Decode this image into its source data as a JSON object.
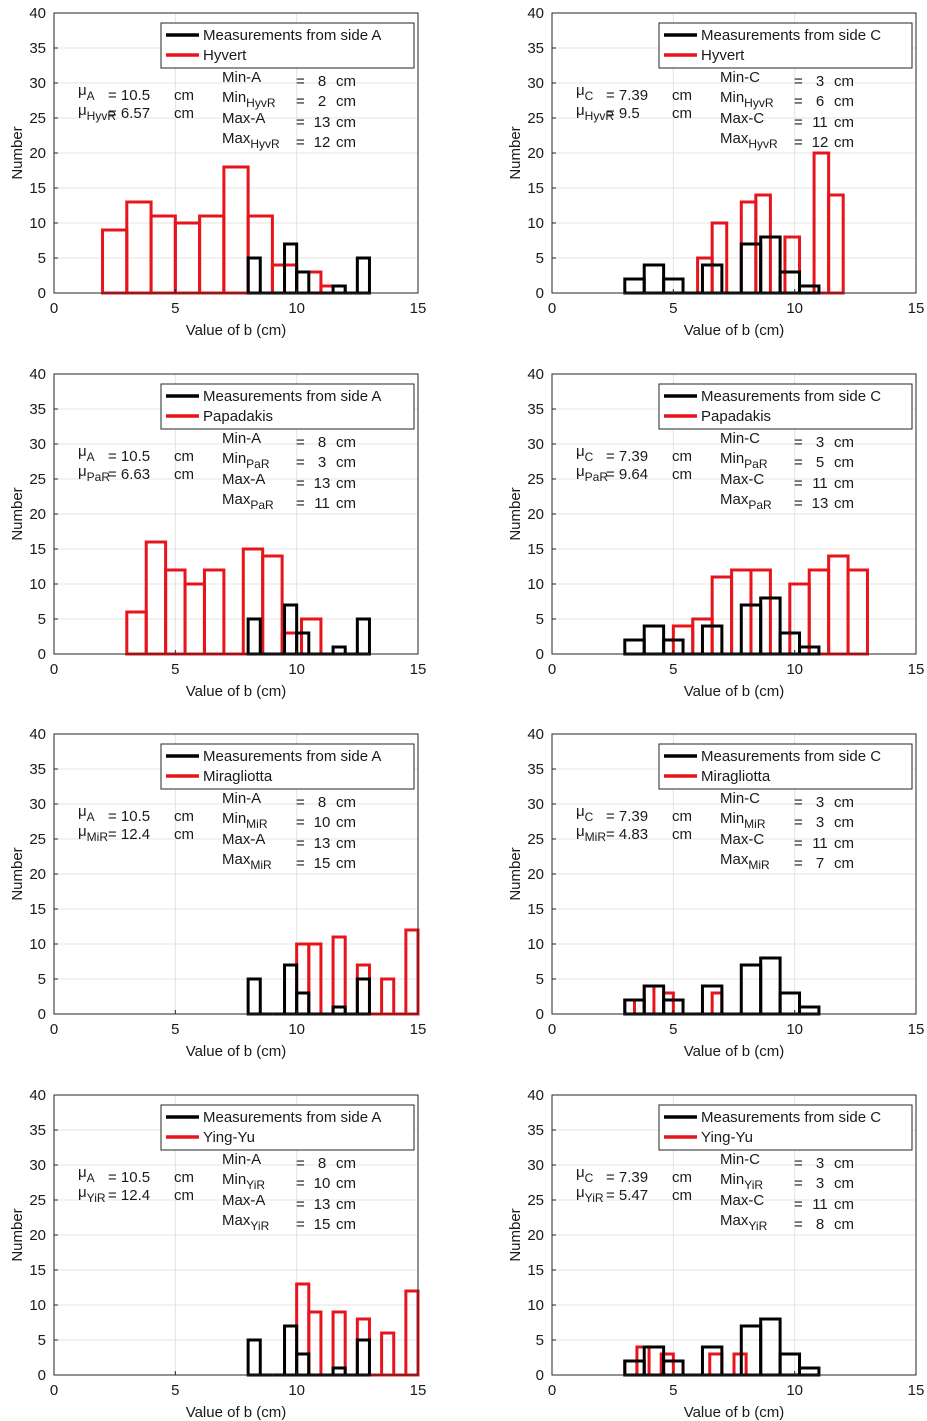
{
  "chart_data": [
    {
      "type": "bar",
      "xlabel": "Value of b (cm)",
      "ylabel": "Number",
      "xlim": [
        0,
        15
      ],
      "ylim": [
        0,
        40
      ],
      "xticks": [
        0,
        5,
        10,
        15
      ],
      "yticks": [
        0,
        5,
        10,
        15,
        20,
        25,
        30,
        35,
        40
      ],
      "grid": true,
      "legend_position": "top-right",
      "legend": [
        "Measurements from side A",
        "Hyvert"
      ],
      "colors": {
        "reference": "#000000",
        "method": "#e8141b"
      },
      "series": [
        {
          "name": "Measurements from side A",
          "bin_width": 0.5,
          "x": [
            8,
            8.5,
            9,
            9.5,
            10,
            10.5,
            11,
            11.5,
            12,
            12.5
          ],
          "values": [
            5,
            0,
            0,
            7,
            3,
            0,
            0,
            1,
            0,
            5
          ]
        },
        {
          "name": "Hyvert",
          "bin_width": 1,
          "x": [
            2,
            3,
            4,
            5,
            6,
            7,
            8,
            9,
            10,
            11
          ],
          "values": [
            9,
            13,
            11,
            10,
            11,
            18,
            11,
            4,
            3,
            1
          ]
        }
      ],
      "stats": {
        "mu_ref": {
          "symbol": "μ",
          "sub": "A",
          "value": "10.5",
          "unit": "cm"
        },
        "mu_method": {
          "symbol": "μ",
          "sub": "HyvR",
          "value": "6.57",
          "unit": "cm"
        },
        "min_ref": {
          "label": "Min-A",
          "sub": "",
          "value": "8",
          "unit": "cm"
        },
        "min_method": {
          "label": "Min",
          "sub": "HyvR",
          "value": "2",
          "unit": "cm"
        },
        "max_ref": {
          "label": "Max-A",
          "sub": "",
          "value": "13",
          "unit": "cm"
        },
        "max_method": {
          "label": "Max",
          "sub": "HyvR",
          "value": "12",
          "unit": "cm"
        }
      }
    },
    {
      "type": "bar",
      "xlabel": "Value of b (cm)",
      "ylabel": "Number",
      "xlim": [
        0,
        15
      ],
      "ylim": [
        0,
        40
      ],
      "xticks": [
        0,
        5,
        10,
        15
      ],
      "yticks": [
        0,
        5,
        10,
        15,
        20,
        25,
        30,
        35,
        40
      ],
      "grid": true,
      "legend_position": "top-right",
      "legend": [
        "Measurements from side C",
        "Hyvert"
      ],
      "colors": {
        "reference": "#000000",
        "method": "#e8141b"
      },
      "series": [
        {
          "name": "Measurements from side C",
          "bin_width": 0.8,
          "x": [
            3,
            3.8,
            4.6,
            5.4,
            6.2,
            7,
            7.8,
            8.6,
            9.4,
            10.2
          ],
          "values": [
            2,
            4,
            2,
            0,
            4,
            0,
            7,
            8,
            3,
            1
          ]
        },
        {
          "name": "Hyvert",
          "bin_width": 0.6,
          "x": [
            6,
            6.6,
            7.2,
            7.8,
            8.4,
            9,
            9.6,
            10.2,
            10.8,
            11.4
          ],
          "values": [
            5,
            10,
            0,
            13,
            14,
            0,
            8,
            0,
            20,
            14
          ]
        }
      ],
      "stats": {
        "mu_ref": {
          "symbol": "μ",
          "sub": "C",
          "value": "7.39",
          "unit": "cm"
        },
        "mu_method": {
          "symbol": "μ",
          "sub": "HyvR",
          "value": "9.5",
          "unit": "cm"
        },
        "min_ref": {
          "label": "Min-C",
          "sub": "",
          "value": "3",
          "unit": "cm"
        },
        "min_method": {
          "label": "Min",
          "sub": "HyvR",
          "value": "6",
          "unit": "cm"
        },
        "max_ref": {
          "label": "Max-C",
          "sub": "",
          "value": "11",
          "unit": "cm"
        },
        "max_method": {
          "label": "Max",
          "sub": "HyvR",
          "value": "12",
          "unit": "cm"
        }
      }
    },
    {
      "type": "bar",
      "xlabel": "Value of b (cm)",
      "ylabel": "Number",
      "xlim": [
        0,
        15
      ],
      "ylim": [
        0,
        40
      ],
      "xticks": [
        0,
        5,
        10,
        15
      ],
      "yticks": [
        0,
        5,
        10,
        15,
        20,
        25,
        30,
        35,
        40
      ],
      "grid": true,
      "legend_position": "top-right",
      "legend": [
        "Measurements from side A",
        "Papadakis"
      ],
      "colors": {
        "reference": "#000000",
        "method": "#e8141b"
      },
      "series": [
        {
          "name": "Measurements from side A",
          "bin_width": 0.5,
          "x": [
            8,
            8.5,
            9,
            9.5,
            10,
            10.5,
            11,
            11.5,
            12,
            12.5
          ],
          "values": [
            5,
            0,
            0,
            7,
            3,
            0,
            0,
            1,
            0,
            5
          ]
        },
        {
          "name": "Papadakis",
          "bin_width": 0.8,
          "x": [
            3,
            3.8,
            4.6,
            5.4,
            6.2,
            7,
            7.8,
            8.6,
            9.4,
            10.2
          ],
          "values": [
            6,
            16,
            12,
            10,
            12,
            0,
            15,
            14,
            3,
            5
          ]
        }
      ],
      "stats": {
        "mu_ref": {
          "symbol": "μ",
          "sub": "A",
          "value": "10.5",
          "unit": "cm"
        },
        "mu_method": {
          "symbol": "μ",
          "sub": "PaR",
          "value": "6.63",
          "unit": "cm"
        },
        "min_ref": {
          "label": "Min-A",
          "sub": "",
          "value": "8",
          "unit": "cm"
        },
        "min_method": {
          "label": "Min",
          "sub": "PaR",
          "value": "3",
          "unit": "cm"
        },
        "max_ref": {
          "label": "Max-A",
          "sub": "",
          "value": "13",
          "unit": "cm"
        },
        "max_method": {
          "label": "Max",
          "sub": "PaR",
          "value": "11",
          "unit": "cm"
        }
      }
    },
    {
      "type": "bar",
      "xlabel": "Value of b (cm)",
      "ylabel": "Number",
      "xlim": [
        0,
        15
      ],
      "ylim": [
        0,
        40
      ],
      "xticks": [
        0,
        5,
        10,
        15
      ],
      "yticks": [
        0,
        5,
        10,
        15,
        20,
        25,
        30,
        35,
        40
      ],
      "grid": true,
      "legend_position": "top-right",
      "legend": [
        "Measurements from side C",
        "Papadakis"
      ],
      "colors": {
        "reference": "#000000",
        "method": "#e8141b"
      },
      "series": [
        {
          "name": "Measurements from side C",
          "bin_width": 0.8,
          "x": [
            3,
            3.8,
            4.6,
            5.4,
            6.2,
            7,
            7.8,
            8.6,
            9.4,
            10.2
          ],
          "values": [
            2,
            4,
            2,
            0,
            4,
            0,
            7,
            8,
            3,
            1
          ]
        },
        {
          "name": "Papadakis",
          "bin_width": 0.8,
          "x": [
            5,
            5.8,
            6.6,
            7.4,
            8.2,
            9,
            9.8,
            10.6,
            11.4,
            12.2
          ],
          "values": [
            4,
            5,
            11,
            12,
            12,
            0,
            10,
            12,
            14,
            12
          ]
        }
      ],
      "stats": {
        "mu_ref": {
          "symbol": "μ",
          "sub": "C",
          "value": "7.39",
          "unit": "cm"
        },
        "mu_method": {
          "symbol": "μ",
          "sub": "PaR",
          "value": "9.64",
          "unit": "cm"
        },
        "min_ref": {
          "label": "Min-C",
          "sub": "",
          "value": "3",
          "unit": "cm"
        },
        "min_method": {
          "label": "Min",
          "sub": "PaR",
          "value": "5",
          "unit": "cm"
        },
        "max_ref": {
          "label": "Max-C",
          "sub": "",
          "value": "11",
          "unit": "cm"
        },
        "max_method": {
          "label": "Max",
          "sub": "PaR",
          "value": "13",
          "unit": "cm"
        }
      }
    },
    {
      "type": "bar",
      "xlabel": "Value of b (cm)",
      "ylabel": "Number",
      "xlim": [
        0,
        15
      ],
      "ylim": [
        0,
        40
      ],
      "xticks": [
        0,
        5,
        10,
        15
      ],
      "yticks": [
        0,
        5,
        10,
        15,
        20,
        25,
        30,
        35,
        40
      ],
      "grid": true,
      "legend_position": "top-right",
      "legend": [
        "Measurements from side A",
        "Miragliotta"
      ],
      "colors": {
        "reference": "#000000",
        "method": "#e8141b"
      },
      "series": [
        {
          "name": "Measurements from side A",
          "bin_width": 0.5,
          "x": [
            8,
            8.5,
            9,
            9.5,
            10,
            10.5,
            11,
            11.5,
            12,
            12.5
          ],
          "values": [
            5,
            0,
            0,
            7,
            3,
            0,
            0,
            1,
            0,
            5
          ]
        },
        {
          "name": "Miragliotta",
          "bin_width": 0.5,
          "x": [
            10,
            10.5,
            11,
            11.5,
            12,
            12.5,
            13,
            13.5,
            14,
            14.5
          ],
          "values": [
            10,
            10,
            0,
            11,
            0,
            7,
            0,
            5,
            0,
            12
          ]
        }
      ],
      "stats": {
        "mu_ref": {
          "symbol": "μ",
          "sub": "A",
          "value": "10.5",
          "unit": "cm"
        },
        "mu_method": {
          "symbol": "μ",
          "sub": "MiR",
          "value": "12.4",
          "unit": "cm"
        },
        "min_ref": {
          "label": "Min-A",
          "sub": "",
          "value": "8",
          "unit": "cm"
        },
        "min_method": {
          "label": "Min",
          "sub": "MiR",
          "value": "10",
          "unit": "cm"
        },
        "max_ref": {
          "label": "Max-A",
          "sub": "",
          "value": "13",
          "unit": "cm"
        },
        "max_method": {
          "label": "Max",
          "sub": "MiR",
          "value": "15",
          "unit": "cm"
        }
      }
    },
    {
      "type": "bar",
      "xlabel": "Value of b (cm)",
      "ylabel": "Number",
      "xlim": [
        0,
        15
      ],
      "ylim": [
        0,
        40
      ],
      "xticks": [
        0,
        5,
        10,
        15
      ],
      "yticks": [
        0,
        5,
        10,
        15,
        20,
        25,
        30,
        35,
        40
      ],
      "grid": true,
      "legend_position": "top-right",
      "legend": [
        "Measurements from side C",
        "Miragliotta"
      ],
      "colors": {
        "reference": "#000000",
        "method": "#e8141b"
      },
      "series": [
        {
          "name": "Measurements from side C",
          "bin_width": 0.8,
          "x": [
            3,
            3.8,
            4.6,
            5.4,
            6.2,
            7,
            7.8,
            8.6,
            9.4,
            10.2
          ],
          "values": [
            2,
            4,
            2,
            0,
            4,
            0,
            7,
            8,
            3,
            1
          ]
        },
        {
          "name": "Miragliotta",
          "bin_width": 0.4,
          "x": [
            3,
            3.4,
            3.8,
            4.2,
            4.6,
            5,
            5.4,
            5.8,
            6.2,
            6.6
          ],
          "values": [
            2,
            0,
            4,
            0,
            3,
            0,
            0,
            0,
            0,
            3
          ]
        }
      ],
      "stats": {
        "mu_ref": {
          "symbol": "μ",
          "sub": "C",
          "value": "7.39",
          "unit": "cm"
        },
        "mu_method": {
          "symbol": "μ",
          "sub": "MiR",
          "value": "4.83",
          "unit": "cm"
        },
        "min_ref": {
          "label": "Min-C",
          "sub": "",
          "value": "3",
          "unit": "cm"
        },
        "min_method": {
          "label": "Min",
          "sub": "MiR",
          "value": "3",
          "unit": "cm"
        },
        "max_ref": {
          "label": "Max-C",
          "sub": "",
          "value": "11",
          "unit": "cm"
        },
        "max_method": {
          "label": "Max",
          "sub": "MiR",
          "value": "7",
          "unit": "cm"
        }
      }
    },
    {
      "type": "bar",
      "xlabel": "Value of b (cm)",
      "ylabel": "Number",
      "xlim": [
        0,
        15
      ],
      "ylim": [
        0,
        40
      ],
      "xticks": [
        0,
        5,
        10,
        15
      ],
      "yticks": [
        0,
        5,
        10,
        15,
        20,
        25,
        30,
        35,
        40
      ],
      "grid": true,
      "legend_position": "top-right",
      "legend": [
        "Measurements from side A",
        "Ying-Yu"
      ],
      "colors": {
        "reference": "#000000",
        "method": "#e8141b"
      },
      "series": [
        {
          "name": "Measurements from side A",
          "bin_width": 0.5,
          "x": [
            8,
            8.5,
            9,
            9.5,
            10,
            10.5,
            11,
            11.5,
            12,
            12.5
          ],
          "values": [
            5,
            0,
            0,
            7,
            3,
            0,
            0,
            1,
            0,
            5
          ]
        },
        {
          "name": "Ying-Yu",
          "bin_width": 0.5,
          "x": [
            10,
            10.5,
            11,
            11.5,
            12,
            12.5,
            13,
            13.5,
            14,
            14.5
          ],
          "values": [
            13,
            9,
            0,
            9,
            0,
            8,
            0,
            6,
            0,
            12
          ]
        }
      ],
      "stats": {
        "mu_ref": {
          "symbol": "μ",
          "sub": "A",
          "value": "10.5",
          "unit": "cm"
        },
        "mu_method": {
          "symbol": "μ",
          "sub": "YiR",
          "value": "12.4",
          "unit": "cm"
        },
        "min_ref": {
          "label": "Min-A",
          "sub": "",
          "value": "8",
          "unit": "cm"
        },
        "min_method": {
          "label": "Min",
          "sub": "YiR",
          "value": "10",
          "unit": "cm"
        },
        "max_ref": {
          "label": "Max-A",
          "sub": "",
          "value": "13",
          "unit": "cm"
        },
        "max_method": {
          "label": "Max",
          "sub": "YiR",
          "value": "15",
          "unit": "cm"
        }
      }
    },
    {
      "type": "bar",
      "xlabel": "Value of b (cm)",
      "ylabel": "Number",
      "xlim": [
        0,
        15
      ],
      "ylim": [
        0,
        40
      ],
      "xticks": [
        0,
        5,
        10,
        15
      ],
      "yticks": [
        0,
        5,
        10,
        15,
        20,
        25,
        30,
        35,
        40
      ],
      "grid": true,
      "legend_position": "top-right",
      "legend": [
        "Measurements from side C",
        "Ying-Yu"
      ],
      "colors": {
        "reference": "#000000",
        "method": "#e8141b"
      },
      "series": [
        {
          "name": "Measurements from side C",
          "bin_width": 0.8,
          "x": [
            3,
            3.8,
            4.6,
            5.4,
            6.2,
            7,
            7.8,
            8.6,
            9.4,
            10.2
          ],
          "values": [
            2,
            4,
            2,
            0,
            4,
            0,
            7,
            8,
            3,
            1
          ]
        },
        {
          "name": "Ying-Yu",
          "bin_width": 0.5,
          "x": [
            3,
            3.5,
            4,
            4.5,
            5,
            5.5,
            6,
            6.5,
            7,
            7.5
          ],
          "values": [
            2,
            4,
            0,
            3,
            0,
            0,
            0,
            3,
            0,
            3
          ]
        }
      ],
      "stats": {
        "mu_ref": {
          "symbol": "μ",
          "sub": "C",
          "value": "7.39",
          "unit": "cm"
        },
        "mu_method": {
          "symbol": "μ",
          "sub": "YiR",
          "value": "5.47",
          "unit": "cm"
        },
        "min_ref": {
          "label": "Min-C",
          "sub": "",
          "value": "3",
          "unit": "cm"
        },
        "min_method": {
          "label": "Min",
          "sub": "YiR",
          "value": "3",
          "unit": "cm"
        },
        "max_ref": {
          "label": "Max-C",
          "sub": "",
          "value": "11",
          "unit": "cm"
        },
        "max_method": {
          "label": "Max",
          "sub": "YiR",
          "value": "8",
          "unit": "cm"
        }
      }
    }
  ]
}
